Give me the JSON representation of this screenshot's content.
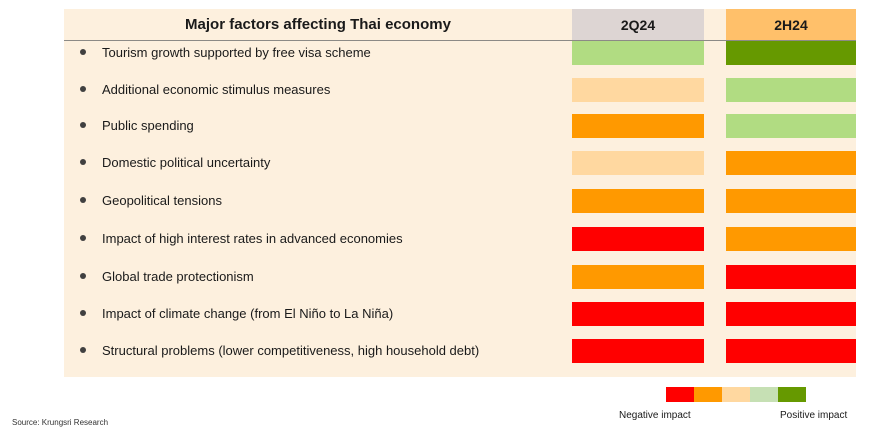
{
  "chart_data": {
    "type": "table",
    "title": "Major factors affecting Thai economy",
    "columns": [
      "2Q24",
      "2H24"
    ],
    "scale": [
      "strong negative",
      "negative",
      "slight negative",
      "slight positive",
      "positive"
    ],
    "rows": [
      {
        "label": "Tourism growth supported by free visa scheme",
        "values": [
          "slight positive",
          "positive"
        ]
      },
      {
        "label": "Additional economic stimulus measures",
        "values": [
          "slight negative",
          "slight positive"
        ]
      },
      {
        "label": "Public spending",
        "values": [
          "negative",
          "slight positive"
        ]
      },
      {
        "label": "Domestic political uncertainty",
        "values": [
          "slight negative",
          "negative"
        ]
      },
      {
        "label": "Geopolitical tensions",
        "values": [
          "negative",
          "negative"
        ]
      },
      {
        "label": "Impact of high interest rates in advanced economies",
        "values": [
          "strong negative",
          "negative"
        ]
      },
      {
        "label": "Global trade protectionism",
        "values": [
          "negative",
          "strong negative"
        ]
      },
      {
        "label": "Impact of climate change  (from El Niño to La Niña)",
        "values": [
          "strong negative",
          "strong negative"
        ]
      },
      {
        "label": "Structural problems (lower competitiveness, high household debt)",
        "values": [
          "strong negative",
          "strong negative"
        ]
      }
    ],
    "legend": {
      "negative_label": "Negative impact",
      "positive_label": "Positive impact",
      "colors": [
        "#ff0000",
        "#ff9900",
        "#ffd8a0",
        "#c6e0b4",
        "#669900"
      ]
    }
  },
  "colors": {
    "strong negative": "#ff0000",
    "negative": "#ff9900",
    "slight negative": "#ffd8a0",
    "slight positive": "#b1dc82",
    "positive": "#669900",
    "header_2q24": "#ddd5d3",
    "header_2h24": "#ffc06a",
    "panel_bg": "#fdf0de"
  },
  "source": "Source: Krungsri Research"
}
